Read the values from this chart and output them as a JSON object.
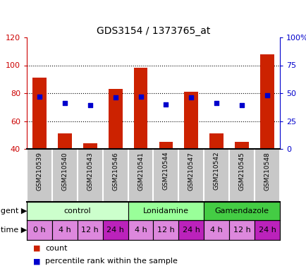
{
  "title": "GDS3154 / 1373765_at",
  "samples": [
    "GSM210539",
    "GSM210540",
    "GSM210543",
    "GSM210546",
    "GSM210541",
    "GSM210544",
    "GSM210547",
    "GSM210542",
    "GSM210545",
    "GSM210548"
  ],
  "count_values": [
    91,
    51,
    44,
    83,
    98,
    45,
    81,
    51,
    45,
    108
  ],
  "percentile_values": [
    47,
    41,
    39,
    46,
    47,
    40,
    46,
    41,
    39,
    48
  ],
  "ylim_left": [
    40,
    120
  ],
  "ylim_right": [
    0,
    100
  ],
  "yticks_left": [
    40,
    60,
    80,
    100,
    120
  ],
  "yticks_right": [
    0,
    25,
    50,
    75,
    100
  ],
  "yticklabels_left": [
    "40",
    "60",
    "80",
    "100",
    "120"
  ],
  "yticklabels_right": [
    "0",
    "25",
    "50",
    "75",
    "100%"
  ],
  "left_tick_color": "#cc0000",
  "right_tick_color": "#0000cc",
  "bar_color": "#cc2200",
  "dot_color": "#0000cc",
  "hgrid_at": [
    60,
    80,
    100
  ],
  "agent_groups": [
    {
      "label": "control",
      "start": 0,
      "end": 3,
      "color": "#ccffcc"
    },
    {
      "label": "Lonidamine",
      "start": 4,
      "end": 6,
      "color": "#99ff99"
    },
    {
      "label": "Gamendazole",
      "start": 7,
      "end": 9,
      "color": "#44cc44"
    }
  ],
  "time_labels": [
    "0 h",
    "4 h",
    "12 h",
    "24 h",
    "4 h",
    "12 h",
    "24 h",
    "4 h",
    "12 h",
    "24 h"
  ],
  "time_colors": [
    "#dd88dd",
    "#dd88dd",
    "#dd88dd",
    "#bb22bb",
    "#dd88dd",
    "#dd88dd",
    "#bb22bb",
    "#dd88dd",
    "#dd88dd",
    "#bb22bb"
  ],
  "sample_bg_color": "#c8c8c8",
  "bg_color": "#ffffff",
  "border_color": "#000000",
  "row_label_fontsize": 8,
  "bar_width": 0.55,
  "dot_size": 18,
  "title_fontsize": 10,
  "tick_fontsize": 8,
  "sample_fontsize": 6.5,
  "cell_fontsize": 8
}
